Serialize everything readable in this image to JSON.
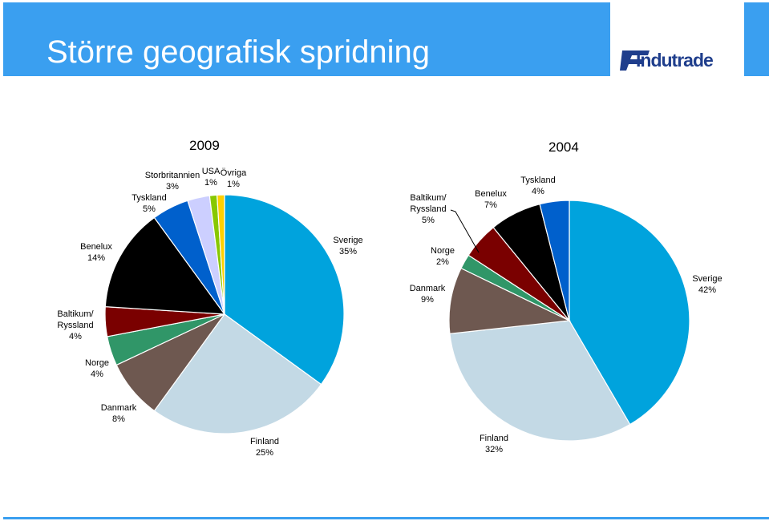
{
  "header": {
    "title": "Större geografisk spridning",
    "logo_text": "Indutrade"
  },
  "colors": {
    "header_bg": "#3a9ff0",
    "logo_blue": "#1f3e8c"
  },
  "chart_data": [
    {
      "type": "pie",
      "title": "2009",
      "slices": [
        {
          "label": "Sverige",
          "value": 35,
          "pct": "35%",
          "color": "#00a3dd"
        },
        {
          "label": "Finland",
          "value": 25,
          "pct": "25%",
          "color": "#c3d9e5"
        },
        {
          "label": "Danmark",
          "value": 8,
          "pct": "8%",
          "color": "#6e5850"
        },
        {
          "label": "Norge",
          "value": 4,
          "pct": "4%",
          "color": "#309668"
        },
        {
          "label": "Baltikum/ Ryssland",
          "value": 4,
          "pct": "4%",
          "color": "#7a0000"
        },
        {
          "label": "Benelux",
          "value": 14,
          "pct": "14%",
          "color": "#000000"
        },
        {
          "label": "Tyskland",
          "value": 5,
          "pct": "5%",
          "color": "#0060cc"
        },
        {
          "label": "Storbritannien",
          "value": 3,
          "pct": "3%",
          "color": "#cccfff"
        },
        {
          "label": "USA",
          "value": 1,
          "pct": "1%",
          "color": "#88c800"
        },
        {
          "label": "Övriga",
          "value": 1,
          "pct": "1%",
          "color": "#ffd000"
        }
      ]
    },
    {
      "type": "pie",
      "title": "2004",
      "slices": [
        {
          "label": "Sverige",
          "value": 42,
          "pct": "42%",
          "color": "#00a3dd"
        },
        {
          "label": "Finland",
          "value": 32,
          "pct": "32%",
          "color": "#c3d9e5"
        },
        {
          "label": "Danmark",
          "value": 9,
          "pct": "9%",
          "color": "#6e5850"
        },
        {
          "label": "Norge",
          "value": 2,
          "pct": "2%",
          "color": "#309668"
        },
        {
          "label": "Baltikum/ Ryssland",
          "value": 5,
          "pct": "5%",
          "color": "#7a0000"
        },
        {
          "label": "Benelux",
          "value": 7,
          "pct": "7%",
          "color": "#000000"
        },
        {
          "label": "Tyskland",
          "value": 4,
          "pct": "4%",
          "color": "#0060cc"
        }
      ]
    }
  ]
}
